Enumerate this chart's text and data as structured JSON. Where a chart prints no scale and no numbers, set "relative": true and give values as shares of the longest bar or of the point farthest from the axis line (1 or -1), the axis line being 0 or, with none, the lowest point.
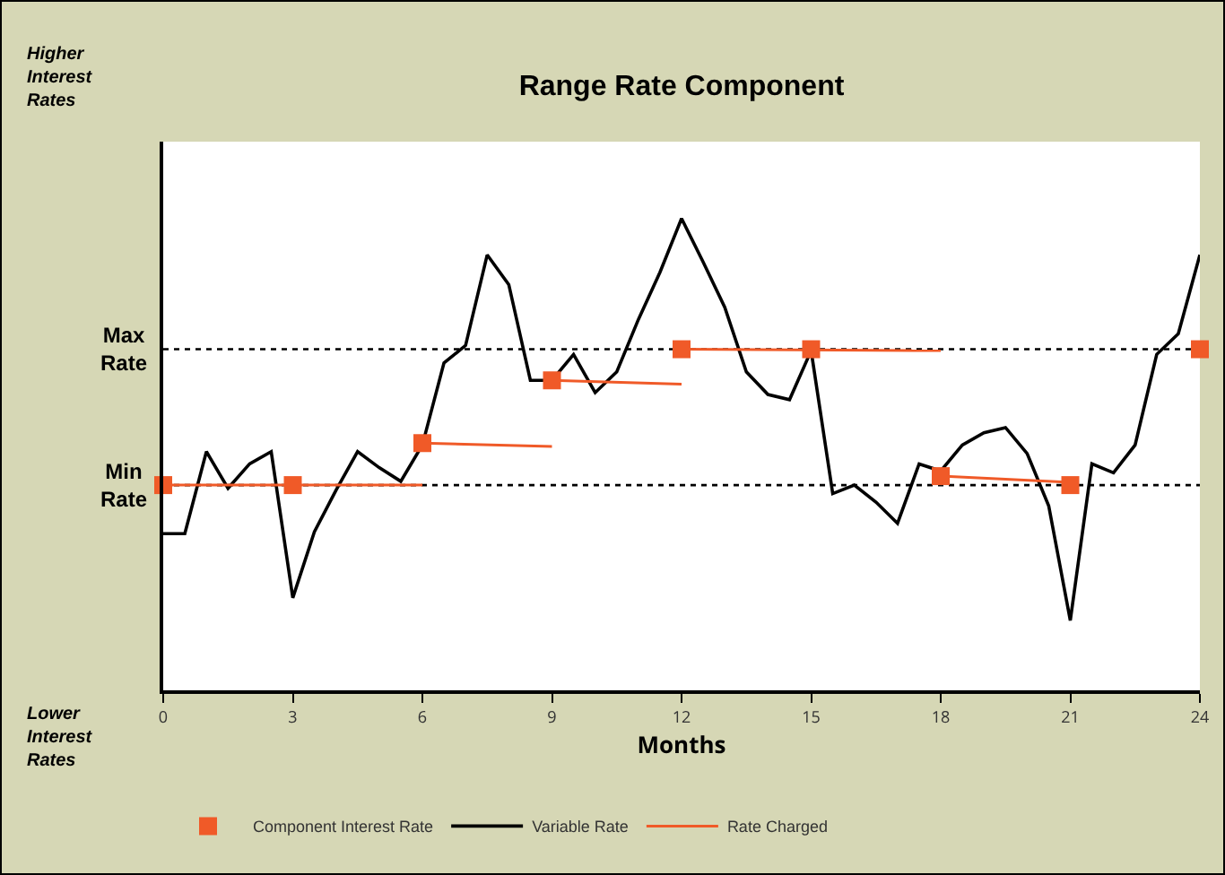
{
  "chart_data": {
    "type": "line",
    "title": "Range Rate Component",
    "xlabel": "Months",
    "relative": true,
    "xlim": [
      0,
      24
    ],
    "xticks": [
      0,
      3,
      6,
      9,
      12,
      15,
      18,
      21,
      24
    ],
    "grid": false,
    "legend": "bottom",
    "line_style": "solid",
    "annotations": [
      "Higher Interest Rates",
      "Lower Interest Rates"
    ],
    "ref_lines": [
      {
        "axis": "y",
        "value": 0.723,
        "label": "Max Rate",
        "color": "#000000",
        "line_style": "dotted"
      },
      {
        "axis": "y",
        "value": 0.435,
        "label": "Min Rate",
        "color": "#000000",
        "line_style": "dotted"
      }
    ],
    "series": [
      {
        "name": "Component Interest Rate",
        "type": "scatter",
        "marker": "square",
        "color": "#f05a28",
        "x": [
          0,
          3,
          6,
          9,
          12,
          15,
          18,
          21,
          24
        ],
        "values": [
          0.435,
          0.435,
          0.524,
          0.657,
          0.723,
          0.723,
          0.454,
          0.435,
          0.723
        ]
      },
      {
        "name": "Variable Rate",
        "color": "#000000",
        "x": [
          0,
          0.5,
          1,
          1.5,
          2,
          2.5,
          3,
          3.5,
          4,
          4.5,
          5,
          5.5,
          6,
          6.5,
          7,
          7.5,
          8,
          8.5,
          9,
          9.5,
          10,
          10.5,
          11,
          11.5,
          12,
          12.5,
          13,
          13.5,
          14,
          14.5,
          15,
          15.5,
          16,
          16.5,
          17,
          17.5,
          18,
          18.5,
          19,
          19.5,
          20,
          20.5,
          21,
          21.5,
          22,
          22.5,
          23,
          23.5,
          24
        ],
        "values": [
          0.332,
          0.332,
          0.506,
          0.428,
          0.48,
          0.506,
          0.196,
          0.336,
          0.424,
          0.506,
          0.472,
          0.443,
          0.52,
          0.694,
          0.731,
          0.923,
          0.86,
          0.657,
          0.657,
          0.712,
          0.631,
          0.675,
          0.786,
          0.886,
          1,
          0.908,
          0.812,
          0.675,
          0.627,
          0.616,
          0.72,
          0.417,
          0.435,
          0.399,
          0.354,
          0.48,
          0.465,
          0.52,
          0.546,
          0.557,
          0.502,
          0.391,
          0.148,
          0.48,
          0.461,
          0.52,
          0.712,
          0.756,
          0.923
        ]
      },
      {
        "name": "Rate Charged",
        "color": "#f05a28",
        "x": [
          0,
          6
        ],
        "values": [
          0.435,
          0.435
        ]
      },
      {
        "color": "#f05a28",
        "x": [
          6,
          9
        ],
        "values": [
          0.524,
          0.517
        ]
      },
      {
        "color": "#f05a28",
        "x": [
          9,
          12
        ],
        "values": [
          0.657,
          0.649
        ]
      },
      {
        "color": "#f05a28",
        "x": [
          12,
          18
        ],
        "values": [
          0.723,
          0.72
        ]
      },
      {
        "color": "#f05a28",
        "x": [
          18,
          21
        ],
        "values": [
          0.454,
          0.441
        ]
      }
    ]
  }
}
